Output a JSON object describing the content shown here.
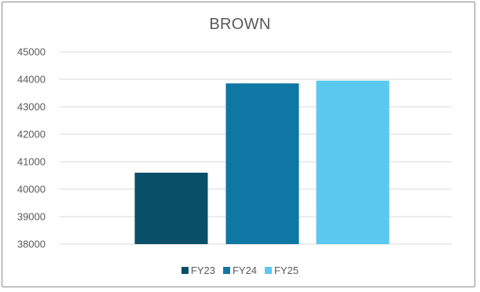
{
  "chart_data": {
    "type": "bar",
    "title": "BROWN",
    "categories": [
      "FY23",
      "FY24",
      "FY25"
    ],
    "values": [
      40600,
      43850,
      43950
    ],
    "colors": [
      "#0a4f68",
      "#0e77a3",
      "#5bc8ef"
    ],
    "ylim": [
      38000,
      45000
    ],
    "yticks": [
      "45000",
      "44000",
      "43000",
      "42000",
      "41000",
      "40000",
      "39000",
      "38000"
    ],
    "grid": true,
    "legend_position": "bottom"
  }
}
